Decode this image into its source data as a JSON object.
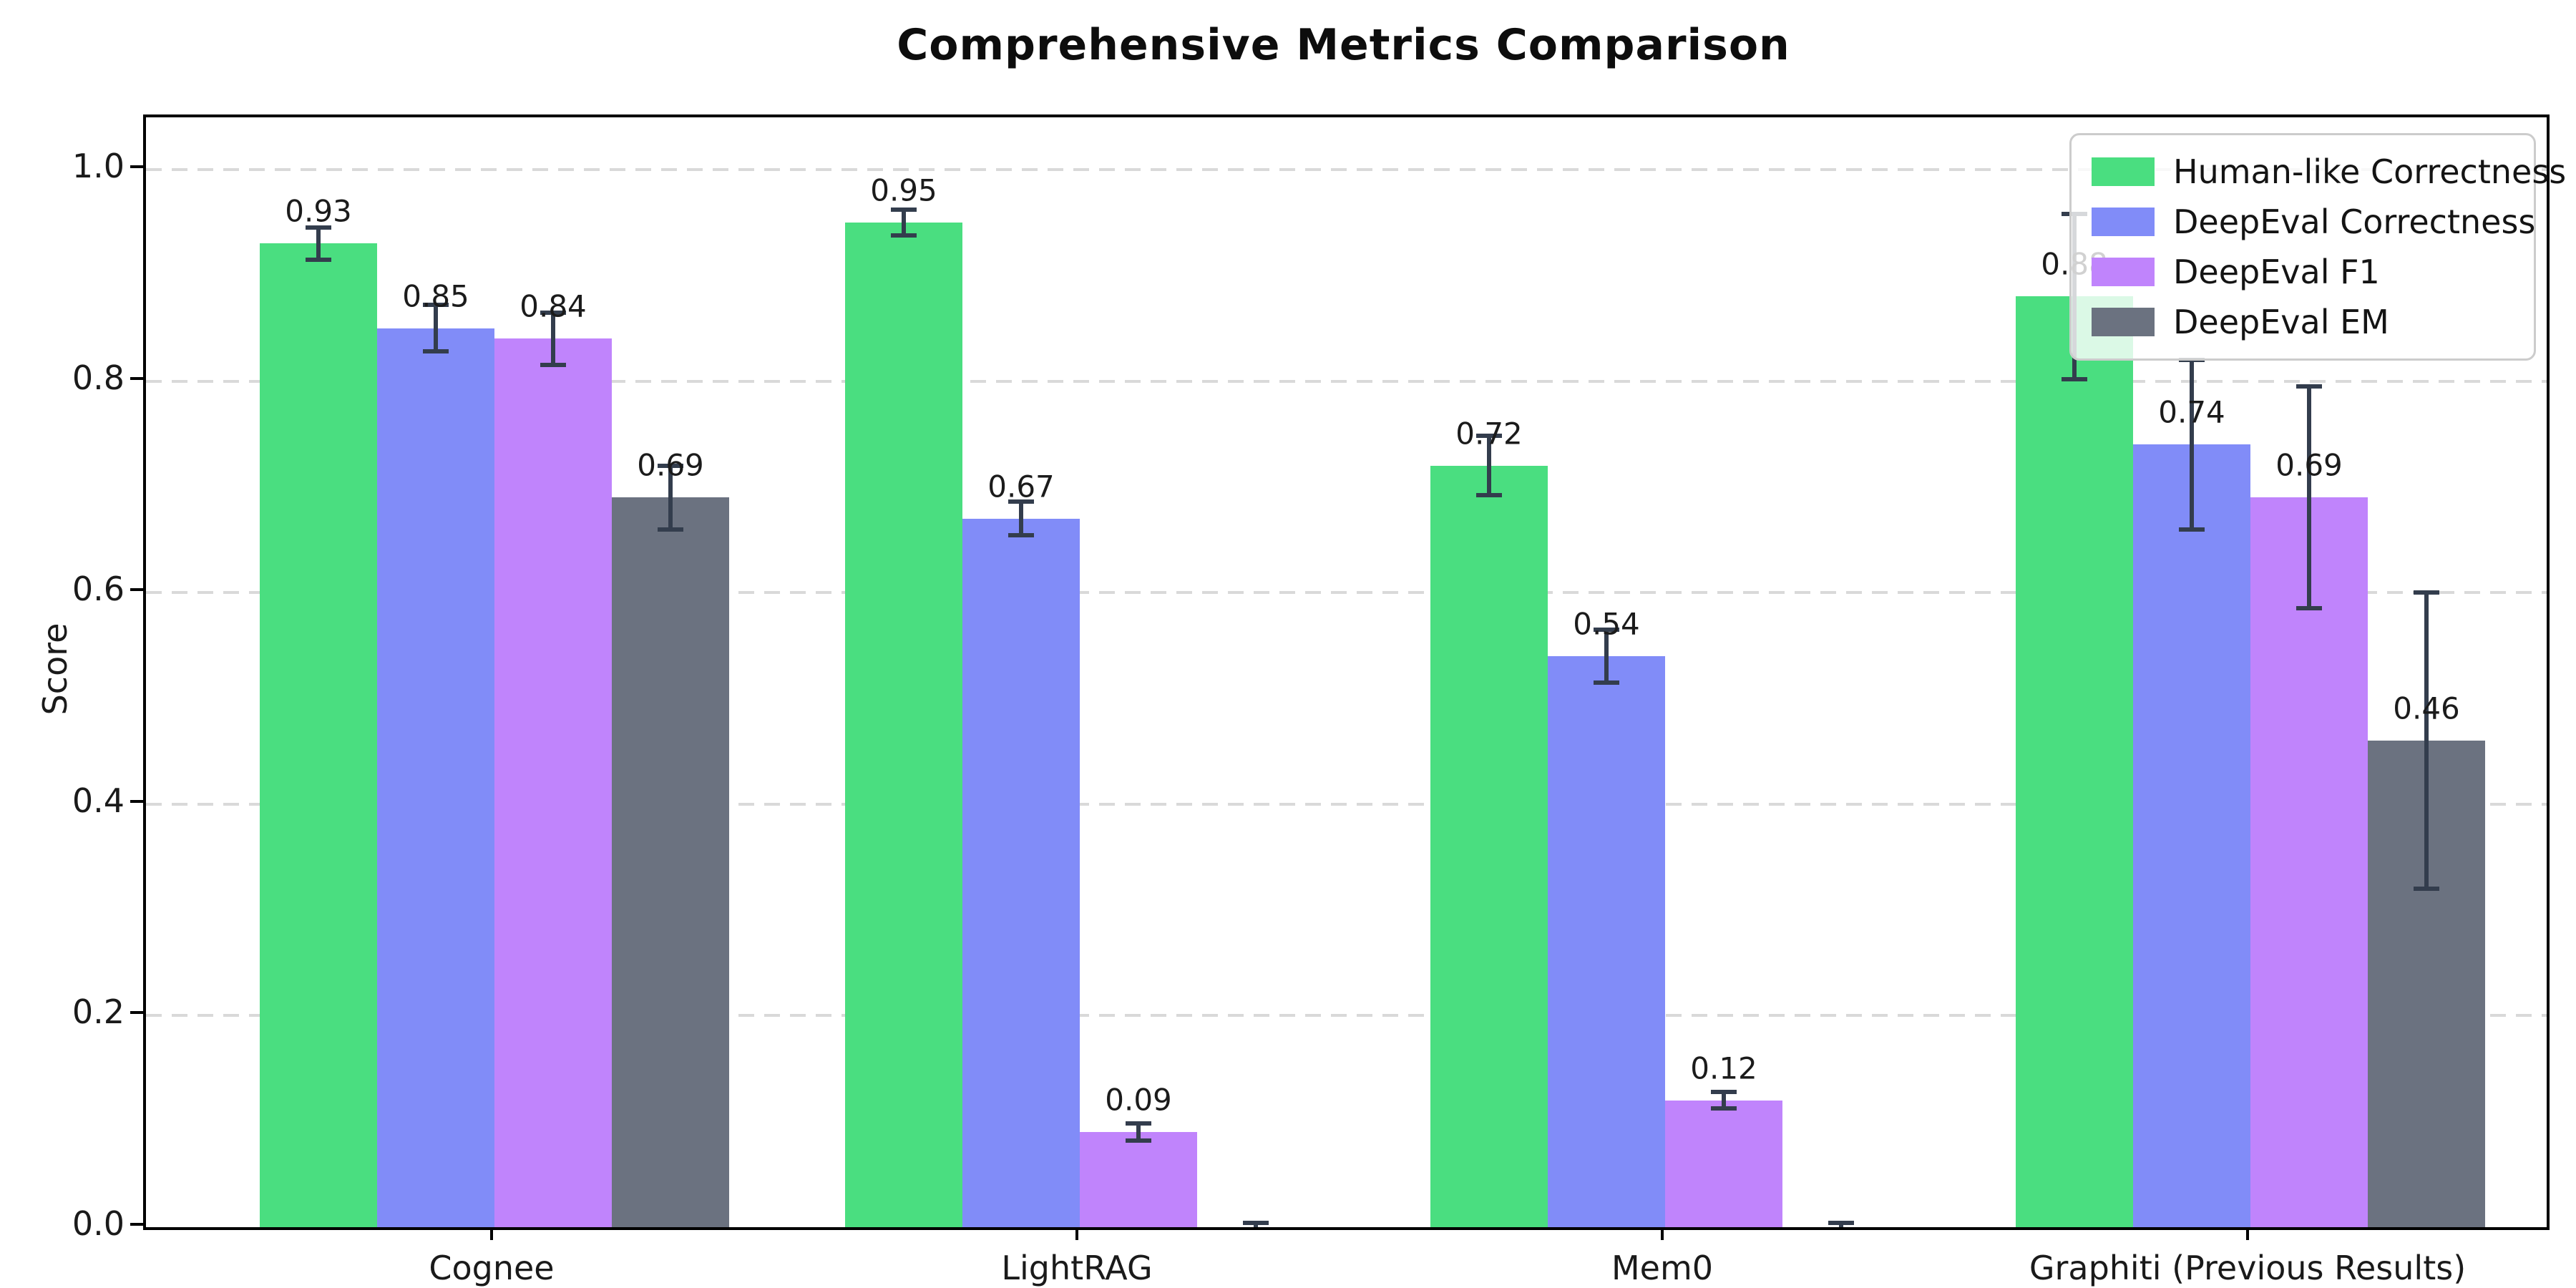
{
  "chart_data": {
    "type": "bar",
    "title": "Comprehensive Metrics Comparison",
    "ylabel": "Score",
    "xlabel": "",
    "categories": [
      "Cognee",
      "LightRAG",
      "Mem0",
      "Graphiti (Previous Results)"
    ],
    "series": [
      {
        "name": "Human-like Correctness",
        "color": "#4ade80",
        "values": [
          0.93,
          0.95,
          0.72,
          0.88
        ],
        "errors": [
          0.015,
          0.012,
          0.028,
          0.078
        ]
      },
      {
        "name": "DeepEval Correctness",
        "color": "#818cf8",
        "values": [
          0.85,
          0.67,
          0.54,
          0.74
        ],
        "errors": [
          0.022,
          0.016,
          0.025,
          0.08
        ]
      },
      {
        "name": "DeepEval F1",
        "color": "#c084fc",
        "values": [
          0.84,
          0.09,
          0.12,
          0.69
        ],
        "errors": [
          0.025,
          0.008,
          0.008,
          0.105
        ]
      },
      {
        "name": "DeepEval EM",
        "color": "#6b7280",
        "values": [
          0.69,
          0.0,
          0.0,
          0.46
        ],
        "errors": [
          0.03,
          0.004,
          0.004,
          0.14
        ]
      }
    ],
    "value_labels": [
      [
        "0.93",
        "0.95",
        "0.72",
        "0.88"
      ],
      [
        "0.85",
        "0.67",
        "0.54",
        "0.74"
      ],
      [
        "0.84",
        "0.09",
        "0.12",
        "0.69"
      ],
      [
        "0.69",
        "",
        "",
        "0.46"
      ]
    ],
    "yticks": [
      "0.0",
      "0.2",
      "0.4",
      "0.6",
      "0.8",
      "1.0"
    ],
    "ytick_values": [
      0,
      0.2,
      0.4,
      0.6,
      0.8,
      1.0
    ],
    "ylim": [
      0,
      1.05
    ],
    "grid": "horizontal-dashed",
    "legend_position": "upper-right",
    "error_bar_color": "#333d4d"
  }
}
